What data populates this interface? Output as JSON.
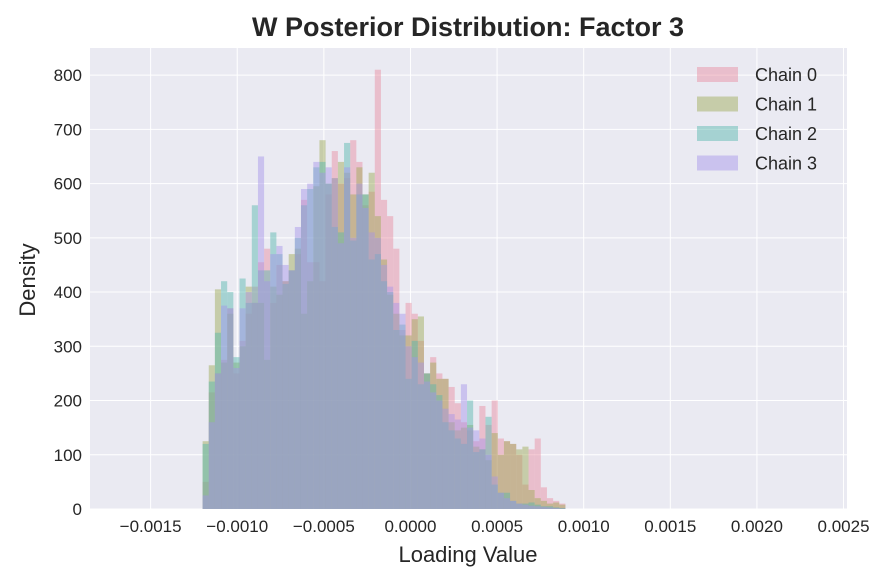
{
  "chart_data": {
    "type": "histogram",
    "title": "W Posterior Distribution: Factor 3",
    "xlabel": "Loading Value",
    "ylabel": "Density",
    "xlim": [
      -0.00185,
      0.00252
    ],
    "ylim": [
      0,
      850
    ],
    "xticks": [
      -0.0015,
      -0.001,
      -0.0005,
      0.0,
      0.0005,
      0.001,
      0.0015,
      0.002,
      0.0025
    ],
    "xtick_labels": [
      "−0.0015",
      "−0.0010",
      "−0.0005",
      "0.0000",
      "0.0005",
      "0.0010",
      "0.0015",
      "0.0020",
      "0.0025"
    ],
    "yticks": [
      0,
      100,
      200,
      300,
      400,
      500,
      600,
      700,
      800
    ],
    "ytick_labels": [
      "0",
      "100",
      "200",
      "300",
      "400",
      "500",
      "600",
      "700",
      "800"
    ],
    "grid": true,
    "legend_position": "top-right",
    "alpha": 0.45,
    "series": [
      {
        "name": "Chain 0",
        "color": "#e8899e",
        "bin_start": -0.0012,
        "bin_width": 3.55e-05,
        "values": [
          50,
          215,
          250,
          275,
          370,
          250,
          310,
          360,
          410,
          455,
          480,
          380,
          450,
          420,
          440,
          470,
          570,
          455,
          455,
          420,
          580,
          660,
          600,
          610,
          680,
          640,
          560,
          585,
          810,
          570,
          540,
          480,
          330,
          380,
          360,
          310,
          250,
          280,
          250,
          240,
          225,
          195,
          160,
          145,
          125,
          190,
          155,
          200,
          130,
          125,
          120,
          100,
          45,
          110,
          130,
          40,
          20,
          15,
          10
        ]
      },
      {
        "name": "Chain 1",
        "color": "#9ca850",
        "bin_start": -0.0012,
        "bin_width": 3.55e-05,
        "values": [
          125,
          265,
          405,
          270,
          360,
          270,
          300,
          410,
          380,
          380,
          275,
          410,
          395,
          420,
          470,
          480,
          360,
          420,
          595,
          680,
          600,
          610,
          640,
          620,
          580,
          630,
          580,
          620,
          540,
          460,
          395,
          360,
          320,
          320,
          350,
          355,
          250,
          270,
          240,
          240,
          160,
          145,
          150,
          155,
          115,
          110,
          90,
          140,
          100,
          125,
          120,
          110,
          115,
          35,
          20,
          15,
          10,
          12,
          8
        ]
      },
      {
        "name": "Chain 2",
        "color": "#52b5ab",
        "bin_start": -0.0012,
        "bin_width": 3.55e-05,
        "values": [
          120,
          235,
          325,
          420,
          400,
          280,
          425,
          380,
          560,
          440,
          440,
          510,
          470,
          415,
          440,
          500,
          560,
          590,
          630,
          640,
          600,
          520,
          510,
          675,
          495,
          580,
          580,
          460,
          470,
          420,
          400,
          330,
          340,
          240,
          310,
          230,
          250,
          230,
          210,
          160,
          145,
          130,
          120,
          200,
          105,
          110,
          170,
          45,
          30,
          30,
          15,
          10,
          10,
          12,
          8,
          5,
          5,
          3,
          2
        ]
      },
      {
        "name": "Chain 3",
        "color": "#a593e8",
        "bin_start": -0.0012,
        "bin_width": 3.55e-05,
        "values": [
          25,
          160,
          250,
          375,
          370,
          260,
          370,
          400,
          380,
          650,
          420,
          470,
          485,
          450,
          440,
          520,
          590,
          600,
          640,
          620,
          630,
          610,
          490,
          630,
          500,
          600,
          555,
          510,
          500,
          450,
          410,
          380,
          360,
          300,
          280,
          270,
          235,
          215,
          200,
          185,
          175,
          165,
          230,
          150,
          145,
          130,
          100,
          60,
          30,
          20,
          15,
          10,
          8,
          6,
          5,
          4,
          3,
          2,
          1
        ]
      }
    ]
  }
}
